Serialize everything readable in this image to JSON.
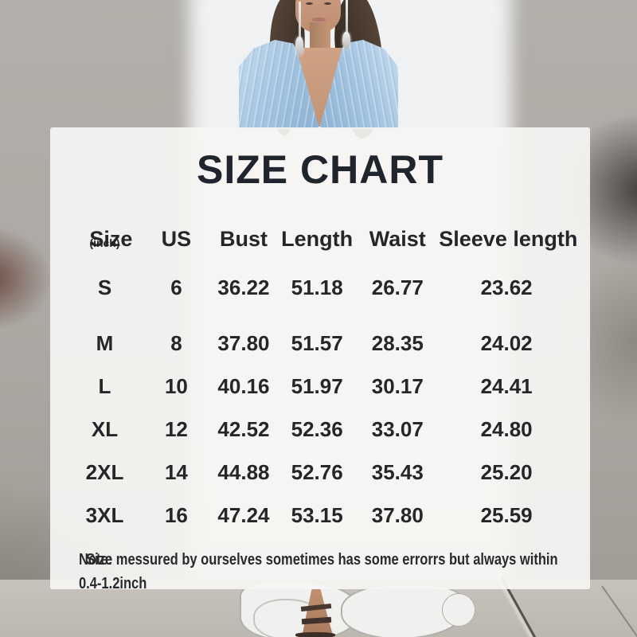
{
  "panel": {
    "title": "SIZE CHART",
    "note": {
      "label": "Note:",
      "line1": "Size messured by ourselves sometimes has some errorrs but always within",
      "line2": "0.4-1.2inch"
    }
  },
  "size_chart": {
    "unit": "(inch)",
    "columns": [
      "Size",
      "US",
      "Bust",
      "Length",
      "Waist",
      "Sleeve length"
    ],
    "rows": [
      [
        "S",
        "6",
        "36.22",
        "51.18",
        "26.77",
        "23.62"
      ],
      [
        "M",
        "8",
        "37.80",
        "51.57",
        "28.35",
        "24.02"
      ],
      [
        "L",
        "10",
        "40.16",
        "51.97",
        "30.17",
        "24.41"
      ],
      [
        "XL",
        "12",
        "42.52",
        "52.36",
        "33.07",
        "24.80"
      ],
      [
        "2XL",
        "14",
        "44.88",
        "52.76",
        "35.43",
        "25.20"
      ],
      [
        "3XL",
        "16",
        "47.24",
        "53.15",
        "37.80",
        "25.59"
      ]
    ]
  },
  "colors": {
    "text_dark": "#24262b",
    "panel_bg": "rgba(246,245,243,0.93)",
    "dress_blue": "#a6c6e2",
    "wall_gray": "#aba7a2",
    "hair_brown": "#463830",
    "skin_tan": "#c99b7e"
  }
}
